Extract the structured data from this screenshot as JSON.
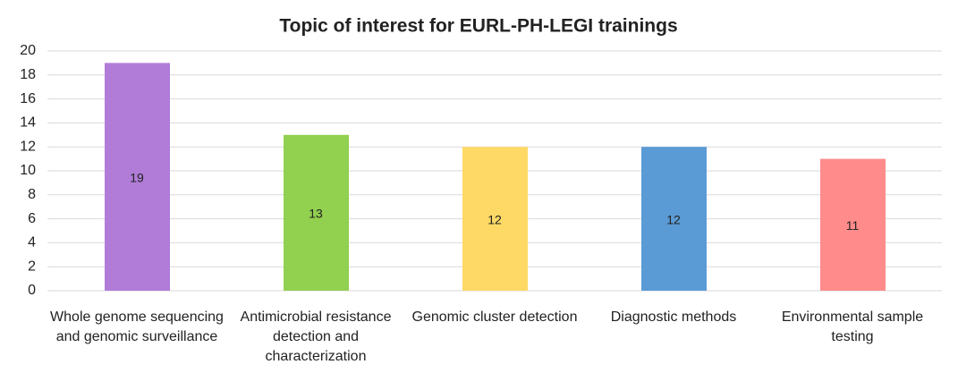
{
  "chart_data": {
    "type": "bar",
    "title": "Topic of interest for EURL-PH-LEGI trainings",
    "categories": [
      "Whole genome sequencing and genomic surveillance",
      "Antimicrobial resistance detection and characterization",
      "Genomic cluster detection",
      "Diagnostic methods",
      "Environmental sample testing"
    ],
    "values": [
      19,
      13,
      12,
      12,
      11
    ],
    "colors": [
      "#b07cd8",
      "#92d050",
      "#ffd966",
      "#5b9bd5",
      "#ff8b8b"
    ],
    "ylim": [
      0,
      20
    ],
    "yticks": [
      0,
      2,
      4,
      6,
      8,
      10,
      12,
      14,
      16,
      18,
      20
    ],
    "grid": true
  }
}
